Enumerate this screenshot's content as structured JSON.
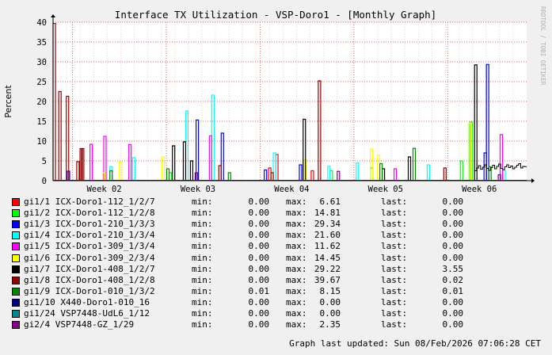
{
  "chart_data": {
    "type": "line",
    "title": "Interface TX Utilization - VSP-Doro1 - [Monthly Graph]",
    "ylabel": "Percent",
    "watermark": "RRDTOOL / TOBI OETIKER",
    "ylim": [
      0,
      40
    ],
    "yticks": [
      "0",
      "5",
      "10",
      "15",
      "20",
      "25",
      "30",
      "35",
      "40"
    ],
    "xticks": [
      "Week 02",
      "Week 03",
      "Week 04",
      "Week 05",
      "Week 06"
    ],
    "grid": true,
    "colors": {
      "background": "#f0f0f0",
      "plot_bg": "#ffffff",
      "grid_minor": "#e8d0d0",
      "grid_major": "#e06060",
      "axis": "#000000"
    },
    "series": [
      {
        "name": "gi1/1 ICX-Doro1-112_1/2/7",
        "color": "#ff0000",
        "min": "0.00",
        "max": "6.61",
        "last": "0.00",
        "spikes": [
          [
            0.455,
            3.2
          ],
          [
            0.47,
            6.61
          ],
          [
            0.545,
            2.5
          ]
        ]
      },
      {
        "name": "gi1/2 ICX-Doro1-112_1/2/8",
        "color": "#00ff00",
        "min": "0.00",
        "max": "14.81",
        "last": "0.00",
        "spikes": [
          [
            0.245,
            2
          ],
          [
            0.585,
            2.5
          ],
          [
            0.67,
            3.2
          ],
          [
            0.86,
            5
          ],
          [
            0.88,
            14.81
          ]
        ]
      },
      {
        "name": "gi1/3 ICX-Doro1-210_1/3/3",
        "color": "#0000ff",
        "min": "0.00",
        "max": "29.34",
        "last": "0.00",
        "spikes": [
          [
            0.03,
            2.4
          ],
          [
            0.302,
            15.3
          ],
          [
            0.355,
            12
          ],
          [
            0.446,
            2.7
          ],
          [
            0.52,
            4
          ],
          [
            0.91,
            7
          ],
          [
            0.915,
            29.34
          ]
        ]
      },
      {
        "name": "gi1/4 ICX-Doro1-210_1/3/4",
        "color": "#00ffff",
        "min": "0.00",
        "max": "21.60",
        "last": "0.00",
        "spikes": [
          [
            0.12,
            3.5
          ],
          [
            0.168,
            5.8
          ],
          [
            0.28,
            17.6
          ],
          [
            0.335,
            21.6
          ],
          [
            0.465,
            7
          ],
          [
            0.58,
            3.6
          ],
          [
            0.64,
            4.5
          ],
          [
            0.79,
            4
          ],
          [
            0.95,
            2.5
          ]
        ]
      },
      {
        "name": "gi1/5 ICX-Doro1-309_1/3/4",
        "color": "#ff00ff",
        "min": "0.00",
        "max": "11.62",
        "last": "0.00",
        "spikes": [
          [
            0.078,
            9.2
          ],
          [
            0.107,
            11.2
          ],
          [
            0.16,
            9.1
          ],
          [
            0.33,
            11.3
          ],
          [
            0.72,
            3
          ],
          [
            0.944,
            11.62
          ]
        ]
      },
      {
        "name": "gi1/6 ICX-Doro1-309_2/3/4",
        "color": "#ffff00",
        "min": "0.00",
        "max": "14.45",
        "last": "0.00",
        "spikes": [
          [
            0.105,
            2
          ],
          [
            0.14,
            4.7
          ],
          [
            0.23,
            6
          ],
          [
            0.53,
            5.3
          ],
          [
            0.67,
            8
          ],
          [
            0.685,
            6.5
          ],
          [
            0.877,
            14.45
          ]
        ]
      },
      {
        "name": "gi1/7 ICX-Doro1-408_1/2/7",
        "color": "#000000",
        "min": "0.00",
        "max": "29.22",
        "last": "3.55",
        "spikes": [
          [
            0.252,
            8.8
          ],
          [
            0.275,
            9.8
          ],
          [
            0.29,
            5
          ],
          [
            0.528,
            15.5
          ],
          [
            0.695,
            3
          ],
          [
            0.75,
            6
          ],
          [
            0.89,
            29.22
          ]
        ]
      },
      {
        "name": "gi1/8 ICX-Doro1-408_1/2/8",
        "color": "#990000",
        "min": "0.00",
        "max": "39.67",
        "last": "0.02",
        "spikes": [
          [
            0.0,
            39.67
          ],
          [
            0.012,
            22.5
          ],
          [
            0.028,
            21.3
          ],
          [
            0.05,
            4.8
          ],
          [
            0.057,
            8.1
          ],
          [
            0.06,
            8.1
          ],
          [
            0.35,
            3.8
          ],
          [
            0.56,
            25.2
          ],
          [
            0.46,
            2
          ],
          [
            0.825,
            3.2
          ]
        ]
      },
      {
        "name": "gi1/9 ICX-Doro1-010_1/3/2",
        "color": "#008800",
        "min": "0.01",
        "max": "8.15",
        "last": "0.01",
        "spikes": [
          [
            0.12,
            2.5
          ],
          [
            0.24,
            3
          ],
          [
            0.37,
            2
          ],
          [
            0.69,
            4.3
          ],
          [
            0.76,
            8.15
          ],
          [
            0.92,
            3.5
          ]
        ]
      },
      {
        "name": "gi1/10 X440-Doro1-010_16",
        "color": "#000088",
        "min": "0.00",
        "max": "0.00",
        "last": "0.00",
        "spikes": []
      },
      {
        "name": "gi1/24 VSP7448-UdL6_1/12",
        "color": "#008888",
        "min": "0.00",
        "max": "0.00",
        "last": "0.00",
        "spikes": []
      },
      {
        "name": "gi2/4 VSP7448-GZ_1/29",
        "color": "#880088",
        "min": "0.00",
        "max": "2.35",
        "last": "0.00",
        "spikes": [
          [
            0.3,
            2
          ],
          [
            0.6,
            2.35
          ],
          [
            0.94,
            1.5
          ]
        ]
      }
    ],
    "tail_series_index": 6,
    "tail_values": [
      2.5,
      3.2,
      3.8,
      2.9,
      3.4,
      4.0,
      3.1,
      2.6,
      3.3,
      3.9,
      3.0,
      3.6,
      4.2,
      3.1,
      2.8,
      3.5,
      4.0,
      3.3,
      3.7,
      3.0,
      3.4,
      3.9,
      4.3,
      3.2,
      3.6,
      3.55
    ]
  },
  "labels": {
    "min": "min:",
    "max": "max:",
    "last": "last:"
  },
  "footer": "Graph last updated: Sun 08/Feb/2026 07:06:28 CET"
}
